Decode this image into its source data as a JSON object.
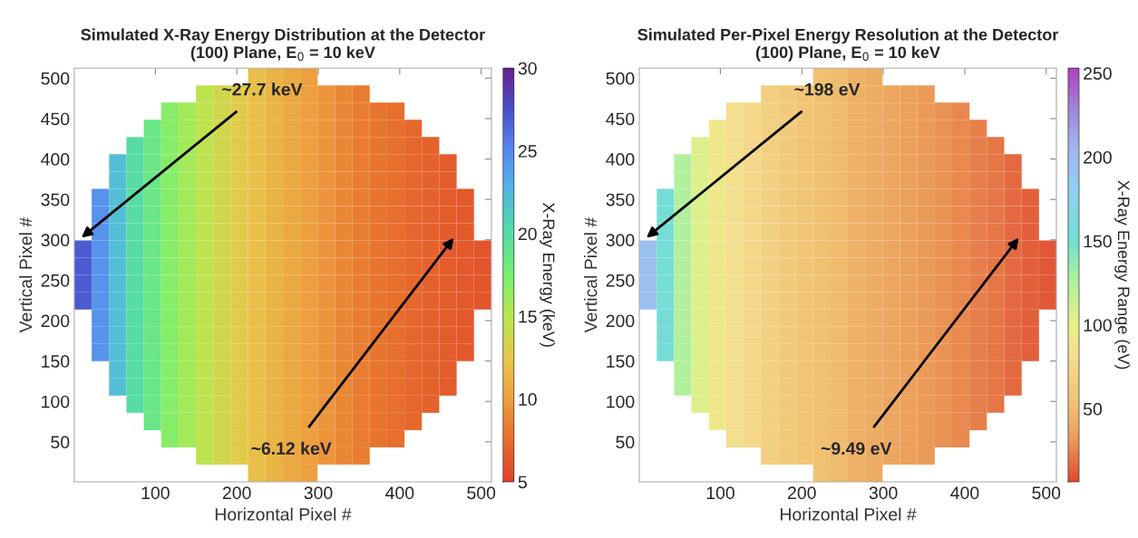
{
  "chart_data": [
    {
      "type": "heatmap",
      "title": "Simulated X-Ray Energy Distribution at the Detector\n(100) Plane, E$_{0}$ = 10 keV",
      "xlabel": "Horizontal Pixel #",
      "ylabel": "Vertical Pixel #",
      "clabel": "X-Ray Energy (keV)",
      "x": [
        11.2,
        32.5,
        53.8,
        75.2,
        96.5,
        117.8,
        139.2,
        160.5,
        181.8,
        203.2,
        224.5,
        245.8,
        267.2,
        288.5,
        309.8,
        331.2,
        352.5,
        373.8,
        395.2,
        416.5,
        437.8,
        459.2,
        480.5,
        501.8
      ],
      "y": [
        501.8,
        480.5,
        459.2,
        437.8,
        416.5,
        395.2,
        373.8,
        352.5,
        331.2,
        309.8,
        288.5,
        267.2,
        245.8,
        224.5,
        203.2,
        181.8,
        160.5,
        139.2,
        117.8,
        96.5,
        75.2,
        53.8,
        32.5,
        11.2
      ],
      "cells": [
        [
          null,
          null,
          null,
          null,
          null,
          null,
          null,
          null,
          null,
          null,
          12,
          11.3,
          10.6,
          10,
          null,
          null,
          null,
          null,
          null,
          null,
          null,
          null,
          null,
          null
        ],
        [
          null,
          null,
          null,
          null,
          null,
          null,
          null,
          14.6,
          13.6,
          12.8,
          12,
          11.3,
          10.6,
          10,
          9.4,
          8.9,
          8.4,
          null,
          null,
          null,
          null,
          null,
          null,
          null
        ],
        [
          null,
          null,
          null,
          null,
          null,
          17,
          15.8,
          14.6,
          13.6,
          12.8,
          12,
          11.3,
          10.6,
          10,
          9.4,
          8.9,
          8.4,
          8,
          7.6,
          null,
          null,
          null,
          null,
          null
        ],
        [
          null,
          null,
          null,
          null,
          18.5,
          17,
          15.8,
          14.6,
          13.6,
          12.8,
          12,
          11.3,
          10.6,
          10,
          9.4,
          8.9,
          8.4,
          8,
          7.6,
          7.2,
          null,
          null,
          null,
          null
        ],
        [
          null,
          null,
          null,
          20,
          18.5,
          17,
          15.8,
          14.6,
          13.6,
          12.8,
          12,
          11.3,
          10.6,
          10,
          9.4,
          8.9,
          8.4,
          8,
          7.6,
          7.2,
          6.9,
          null,
          null,
          null
        ],
        [
          null,
          null,
          22,
          20,
          18.5,
          17,
          15.8,
          14.6,
          13.6,
          12.8,
          12,
          11.3,
          10.6,
          10,
          9.4,
          8.9,
          8.4,
          8,
          7.6,
          7.2,
          6.9,
          6.6,
          null,
          null
        ],
        [
          null,
          null,
          22,
          20,
          18.5,
          17,
          15.8,
          14.6,
          13.6,
          12.8,
          12,
          11.3,
          10.6,
          10,
          9.4,
          8.9,
          8.4,
          8,
          7.6,
          7.2,
          6.9,
          6.6,
          null,
          null
        ],
        [
          null,
          24.5,
          22,
          20,
          18.5,
          17,
          15.8,
          14.6,
          13.6,
          12.8,
          12,
          11.3,
          10.6,
          10,
          9.4,
          8.9,
          8.4,
          8,
          7.6,
          7.2,
          6.9,
          6.6,
          6.4,
          null
        ],
        [
          null,
          24.5,
          22,
          20,
          18.5,
          17,
          15.8,
          14.6,
          13.6,
          12.8,
          12,
          11.3,
          10.6,
          10,
          9.4,
          8.9,
          8.4,
          8,
          7.6,
          7.2,
          6.9,
          6.6,
          6.4,
          null
        ],
        [
          null,
          24.5,
          22,
          20,
          18.5,
          17,
          15.8,
          14.6,
          13.6,
          12.8,
          12,
          11.3,
          10.6,
          10,
          9.4,
          8.9,
          8.4,
          8,
          7.6,
          7.2,
          6.9,
          6.6,
          6.4,
          null
        ],
        [
          27,
          24.5,
          22,
          20,
          18.5,
          17,
          15.8,
          14.6,
          13.6,
          12.8,
          12,
          11.3,
          10.6,
          10,
          9.4,
          8.9,
          8.4,
          8,
          7.6,
          7.2,
          6.9,
          6.6,
          6.4,
          6.2
        ],
        [
          27,
          24.5,
          22,
          20,
          18.5,
          17,
          15.8,
          14.6,
          13.6,
          12.8,
          12,
          11.3,
          10.6,
          10,
          9.4,
          8.9,
          8.4,
          8,
          7.6,
          7.2,
          6.9,
          6.6,
          6.4,
          6.2
        ],
        [
          27,
          24.5,
          22,
          20,
          18.5,
          17,
          15.8,
          14.6,
          13.6,
          12.8,
          12,
          11.3,
          10.6,
          10,
          9.4,
          8.9,
          8.4,
          8,
          7.6,
          7.2,
          6.9,
          6.6,
          6.4,
          6.2
        ],
        [
          27,
          24.5,
          22,
          20,
          18.5,
          17,
          15.8,
          14.6,
          13.6,
          12.8,
          12,
          11.3,
          10.6,
          10,
          9.4,
          8.9,
          8.4,
          8,
          7.6,
          7.2,
          6.9,
          6.6,
          6.4,
          6.2
        ],
        [
          null,
          24.5,
          22,
          20,
          18.5,
          17,
          15.8,
          14.6,
          13.6,
          12.8,
          12,
          11.3,
          10.6,
          10,
          9.4,
          8.9,
          8.4,
          8,
          7.6,
          7.2,
          6.9,
          6.6,
          6.4,
          null
        ],
        [
          null,
          24.5,
          22,
          20,
          18.5,
          17,
          15.8,
          14.6,
          13.6,
          12.8,
          12,
          11.3,
          10.6,
          10,
          9.4,
          8.9,
          8.4,
          8,
          7.6,
          7.2,
          6.9,
          6.6,
          6.4,
          null
        ],
        [
          null,
          24.5,
          22,
          20,
          18.5,
          17,
          15.8,
          14.6,
          13.6,
          12.8,
          12,
          11.3,
          10.6,
          10,
          9.4,
          8.9,
          8.4,
          8,
          7.6,
          7.2,
          6.9,
          6.6,
          6.4,
          null
        ],
        [
          null,
          null,
          22,
          20,
          18.5,
          17,
          15.8,
          14.6,
          13.6,
          12.8,
          12,
          11.3,
          10.6,
          10,
          9.4,
          8.9,
          8.4,
          8,
          7.6,
          7.2,
          6.9,
          6.6,
          null,
          null
        ],
        [
          null,
          null,
          22,
          20,
          18.5,
          17,
          15.8,
          14.6,
          13.6,
          12.8,
          12,
          11.3,
          10.6,
          10,
          9.4,
          8.9,
          8.4,
          8,
          7.6,
          7.2,
          6.9,
          6.6,
          null,
          null
        ],
        [
          null,
          null,
          null,
          20,
          18.5,
          17,
          15.8,
          14.6,
          13.6,
          12.8,
          12,
          11.3,
          10.6,
          10,
          9.4,
          8.9,
          8.4,
          8,
          7.6,
          7.2,
          6.9,
          null,
          null,
          null
        ],
        [
          null,
          null,
          null,
          null,
          18.5,
          17,
          15.8,
          14.6,
          13.6,
          12.8,
          12,
          11.3,
          10.6,
          10,
          9.4,
          8.9,
          8.4,
          8,
          7.6,
          7.2,
          null,
          null,
          null,
          null
        ],
        [
          null,
          null,
          null,
          null,
          null,
          17,
          15.8,
          14.6,
          13.6,
          12.8,
          12,
          11.3,
          10.6,
          10,
          9.4,
          8.9,
          8.4,
          8,
          7.6,
          null,
          null,
          null,
          null,
          null
        ],
        [
          null,
          null,
          null,
          null,
          null,
          null,
          null,
          14.6,
          13.6,
          12.8,
          12,
          11.3,
          10.6,
          10,
          9.4,
          8.9,
          8.4,
          null,
          null,
          null,
          null,
          null,
          null,
          null
        ],
        [
          null,
          null,
          null,
          null,
          null,
          null,
          null,
          null,
          null,
          null,
          12,
          11.3,
          10.6,
          10,
          null,
          null,
          null,
          null,
          null,
          null,
          null,
          null,
          null,
          null
        ]
      ],
      "xlim": [
        0.5,
        512.5
      ],
      "ylim": [
        0.5,
        512.5
      ],
      "xticks": [
        100,
        200,
        300,
        400,
        500
      ],
      "yticks": [
        50,
        100,
        150,
        200,
        250,
        300,
        350,
        400,
        450,
        500
      ],
      "clim": [
        5,
        30
      ],
      "cticks": [
        5,
        10,
        15,
        20,
        25,
        30
      ],
      "grid": false,
      "annotations": [
        "~27.7 keV",
        "~6.12 keV"
      ]
    },
    {
      "type": "heatmap",
      "title": "Simulated Per-Pixel Energy Resolution at the Detector\n(100) Plane, E$_{0}$ = 10 keV",
      "xlabel": "Horizontal Pixel #",
      "ylabel": "Vertical Pixel #",
      "clabel": "X-Ray Energy Range (eV)",
      "x": [
        11.2,
        32.5,
        53.8,
        75.2,
        96.5,
        117.8,
        139.2,
        160.5,
        181.8,
        203.2,
        224.5,
        245.8,
        267.2,
        288.5,
        309.8,
        331.2,
        352.5,
        373.8,
        395.2,
        416.5,
        437.8,
        459.2,
        480.5,
        501.8
      ],
      "y": [
        501.8,
        480.5,
        459.2,
        437.8,
        416.5,
        395.2,
        373.8,
        352.5,
        331.2,
        309.8,
        288.5,
        267.2,
        245.8,
        224.5,
        203.2,
        181.8,
        160.5,
        139.2,
        117.8,
        96.5,
        75.2,
        53.8,
        32.5,
        11.2
      ],
      "cells": [
        [
          null,
          null,
          null,
          null,
          null,
          null,
          null,
          null,
          null,
          null,
          52,
          48,
          44,
          41,
          null,
          null,
          null,
          null,
          null,
          null,
          null,
          null,
          null,
          null
        ],
        [
          null,
          null,
          null,
          null,
          null,
          null,
          null,
          67,
          61,
          56,
          52,
          48,
          44,
          41,
          38,
          35,
          32,
          null,
          null,
          null,
          null,
          null,
          null,
          null
        ],
        [
          null,
          null,
          null,
          null,
          null,
          82,
          74,
          67,
          61,
          56,
          52,
          48,
          44,
          41,
          38,
          35,
          32,
          29,
          26,
          null,
          null,
          null,
          null,
          null
        ],
        [
          null,
          null,
          null,
          null,
          92,
          82,
          74,
          67,
          61,
          56,
          52,
          48,
          44,
          41,
          38,
          35,
          32,
          29,
          26,
          23,
          null,
          null,
          null,
          null
        ],
        [
          null,
          null,
          null,
          105,
          92,
          82,
          74,
          67,
          61,
          56,
          52,
          48,
          44,
          41,
          38,
          35,
          32,
          29,
          26,
          23,
          20,
          null,
          null,
          null
        ],
        [
          null,
          null,
          125,
          105,
          92,
          82,
          74,
          67,
          61,
          56,
          52,
          48,
          44,
          41,
          38,
          35,
          32,
          29,
          26,
          23,
          20,
          17,
          null,
          null
        ],
        [
          null,
          null,
          125,
          105,
          92,
          82,
          74,
          67,
          61,
          56,
          52,
          48,
          44,
          41,
          38,
          35,
          32,
          29,
          26,
          23,
          20,
          17,
          null,
          null
        ],
        [
          null,
          155,
          125,
          105,
          92,
          82,
          74,
          67,
          61,
          56,
          52,
          48,
          44,
          41,
          38,
          35,
          32,
          29,
          26,
          23,
          20,
          17,
          14,
          null
        ],
        [
          null,
          155,
          125,
          105,
          92,
          82,
          74,
          67,
          61,
          56,
          52,
          48,
          44,
          41,
          38,
          35,
          32,
          29,
          26,
          23,
          20,
          17,
          14,
          null
        ],
        [
          null,
          155,
          125,
          105,
          92,
          82,
          74,
          67,
          61,
          56,
          52,
          48,
          44,
          41,
          38,
          35,
          32,
          29,
          26,
          23,
          20,
          17,
          14,
          null
        ],
        [
          195,
          155,
          125,
          105,
          92,
          82,
          74,
          67,
          61,
          56,
          52,
          48,
          44,
          41,
          38,
          35,
          32,
          29,
          26,
          23,
          20,
          17,
          14,
          11
        ],
        [
          195,
          155,
          125,
          105,
          92,
          82,
          74,
          67,
          61,
          56,
          52,
          48,
          44,
          41,
          38,
          35,
          32,
          29,
          26,
          23,
          20,
          17,
          14,
          11
        ],
        [
          195,
          155,
          125,
          105,
          92,
          82,
          74,
          67,
          61,
          56,
          52,
          48,
          44,
          41,
          38,
          35,
          32,
          29,
          26,
          23,
          20,
          17,
          14,
          11
        ],
        [
          195,
          155,
          125,
          105,
          92,
          82,
          74,
          67,
          61,
          56,
          52,
          48,
          44,
          41,
          38,
          35,
          32,
          29,
          26,
          23,
          20,
          17,
          14,
          11
        ],
        [
          null,
          155,
          125,
          105,
          92,
          82,
          74,
          67,
          61,
          56,
          52,
          48,
          44,
          41,
          38,
          35,
          32,
          29,
          26,
          23,
          20,
          17,
          14,
          null
        ],
        [
          null,
          155,
          125,
          105,
          92,
          82,
          74,
          67,
          61,
          56,
          52,
          48,
          44,
          41,
          38,
          35,
          32,
          29,
          26,
          23,
          20,
          17,
          14,
          null
        ],
        [
          null,
          155,
          125,
          105,
          92,
          82,
          74,
          67,
          61,
          56,
          52,
          48,
          44,
          41,
          38,
          35,
          32,
          29,
          26,
          23,
          20,
          17,
          14,
          null
        ],
        [
          null,
          null,
          125,
          105,
          92,
          82,
          74,
          67,
          61,
          56,
          52,
          48,
          44,
          41,
          38,
          35,
          32,
          29,
          26,
          23,
          20,
          17,
          null,
          null
        ],
        [
          null,
          null,
          125,
          105,
          92,
          82,
          74,
          67,
          61,
          56,
          52,
          48,
          44,
          41,
          38,
          35,
          32,
          29,
          26,
          23,
          20,
          17,
          null,
          null
        ],
        [
          null,
          null,
          null,
          105,
          92,
          82,
          74,
          67,
          61,
          56,
          52,
          48,
          44,
          41,
          38,
          35,
          32,
          29,
          26,
          23,
          20,
          null,
          null,
          null
        ],
        [
          null,
          null,
          null,
          null,
          92,
          82,
          74,
          67,
          61,
          56,
          52,
          48,
          44,
          41,
          38,
          35,
          32,
          29,
          26,
          23,
          null,
          null,
          null,
          null
        ],
        [
          null,
          null,
          null,
          null,
          null,
          82,
          74,
          67,
          61,
          56,
          52,
          48,
          44,
          41,
          38,
          35,
          32,
          29,
          26,
          null,
          null,
          null,
          null,
          null
        ],
        [
          null,
          null,
          null,
          null,
          null,
          null,
          null,
          67,
          61,
          56,
          52,
          48,
          44,
          41,
          38,
          35,
          32,
          null,
          null,
          null,
          null,
          null,
          null,
          null
        ],
        [
          null,
          null,
          null,
          null,
          null,
          null,
          null,
          null,
          null,
          null,
          52,
          48,
          44,
          41,
          null,
          null,
          null,
          null,
          null,
          null,
          null,
          null,
          null,
          null
        ]
      ],
      "xlim": [
        0.5,
        512.5
      ],
      "ylim": [
        0.5,
        512.5
      ],
      "xticks": [
        100,
        200,
        300,
        400,
        500
      ],
      "yticks": [
        50,
        100,
        150,
        200,
        250,
        300,
        350,
        400,
        450,
        500
      ],
      "clim": [
        6.5,
        253
      ],
      "cticks": [
        50,
        100,
        150,
        200,
        250
      ],
      "grid": false,
      "annotations": [
        "~198 eV",
        "~9.49 eV"
      ]
    }
  ]
}
